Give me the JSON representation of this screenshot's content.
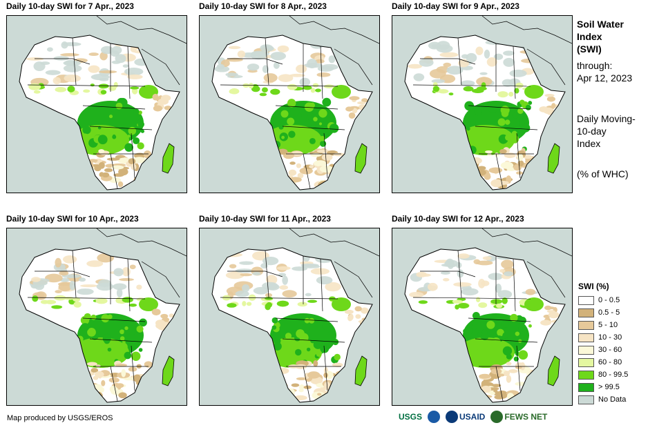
{
  "panels": [
    {
      "title": "Daily 10-day SWI for 7 Apr., 2023"
    },
    {
      "title": "Daily 10-day SWI for 8 Apr., 2023"
    },
    {
      "title": "Daily 10-day SWI for 9 Apr., 2023"
    },
    {
      "title": "Daily 10-day SWI for 10 Apr., 2023"
    },
    {
      "title": "Daily 10-day SWI for 11 Apr., 2023"
    },
    {
      "title": "Daily 10-day SWI for 12 Apr., 2023"
    }
  ],
  "sidebar": {
    "title_line1": "Soil Water",
    "title_line2": "Index",
    "title_line3": "(SWI)",
    "through_label": "through:",
    "through_date": "Apr 12, 2023",
    "desc_line1": "Daily Moving-",
    "desc_line2": "10-day",
    "desc_line3": "Index",
    "units": "(% of WHC)"
  },
  "legend": {
    "title": "SWI (%)",
    "items": [
      {
        "label": "0 - 0.5",
        "color": "#ffffff"
      },
      {
        "label": "0.5 - 5",
        "color": "#d2b27a"
      },
      {
        "label": "5 - 10",
        "color": "#e6c99a"
      },
      {
        "label": "10 - 30",
        "color": "#f6e4c4"
      },
      {
        "label": "30 - 60",
        "color": "#fbf8d8"
      },
      {
        "label": "60 - 80",
        "color": "#e4f7a0"
      },
      {
        "label": "80 - 99.5",
        "color": "#6ed81a"
      },
      {
        "label": "> 99.5",
        "color": "#1fb11c"
      },
      {
        "label": "No Data",
        "color": "#ccdad6"
      }
    ]
  },
  "footer": {
    "credit": "Map produced by USGS/EROS",
    "logos": [
      {
        "name": "USGS",
        "color": "#006f41"
      },
      {
        "name": "NOAA",
        "color": "#1a5aa6"
      },
      {
        "name": "USAID",
        "color": "#0a3a78"
      },
      {
        "name": "FEWS NET",
        "color": "#2a6a2a"
      }
    ]
  }
}
